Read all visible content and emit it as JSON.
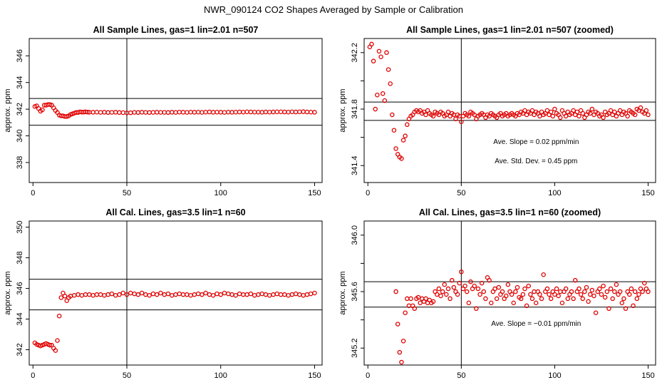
{
  "figure": {
    "title": "NWR_090124  CO2 Shapes Averaged by Sample or Calibration"
  },
  "chart_data": [
    {
      "type": "scatter",
      "title": "All Sample Lines, gas=1 lin=2.01 n=507",
      "xlabel": "",
      "ylabel": "approx. ppm",
      "xlim": [
        -2,
        154
      ],
      "ylim": [
        336.5,
        347.3
      ],
      "xticks": [
        0,
        50,
        100,
        150
      ],
      "yticks": [
        338,
        340,
        342,
        344,
        346
      ],
      "hlines": [
        340.8,
        342.8
      ],
      "vlines": [
        50
      ],
      "marker_color": "#e00000",
      "series": [
        {
          "x": [
            1,
            2,
            3,
            4,
            5,
            6,
            7,
            8,
            9,
            10,
            11,
            12,
            13,
            14,
            15,
            16,
            17,
            18,
            19,
            20,
            21,
            22,
            23,
            24,
            25,
            26,
            27,
            28,
            29,
            30,
            32,
            34,
            36,
            38,
            40,
            42,
            44,
            46,
            48,
            50,
            52,
            54,
            56,
            58,
            60,
            62,
            64,
            66,
            68,
            70,
            72,
            74,
            76,
            78,
            80,
            82,
            84,
            86,
            88,
            90,
            92,
            94,
            96,
            98,
            100,
            102,
            104,
            106,
            108,
            110,
            112,
            114,
            116,
            118,
            120,
            122,
            124,
            126,
            128,
            130,
            132,
            134,
            136,
            138,
            140,
            142,
            144,
            146,
            148,
            150
          ],
          "y": [
            342.2,
            342.25,
            342.05,
            341.85,
            341.95,
            342.3,
            342.3,
            342.35,
            342.35,
            342.3,
            342.1,
            341.9,
            341.75,
            341.55,
            341.5,
            341.5,
            341.45,
            341.45,
            341.5,
            341.6,
            341.65,
            341.7,
            341.75,
            341.75,
            341.8,
            341.78,
            341.78,
            341.8,
            341.78,
            341.77,
            341.77,
            341.78,
            341.76,
            341.77,
            341.75,
            341.76,
            341.77,
            341.75,
            341.74,
            341.72,
            341.73,
            341.76,
            341.75,
            341.77,
            341.76,
            341.75,
            341.76,
            341.77,
            341.76,
            341.76,
            341.75,
            341.77,
            341.76,
            341.78,
            341.77,
            341.76,
            341.78,
            341.77,
            341.78,
            341.76,
            341.78,
            341.79,
            341.77,
            341.78,
            341.77,
            341.76,
            341.78,
            341.77,
            341.78,
            341.79,
            341.78,
            341.8,
            341.79,
            341.78,
            341.78,
            341.77,
            341.79,
            341.78,
            341.79,
            341.8,
            341.8,
            341.79,
            341.78,
            341.8,
            341.79,
            341.8,
            341.81,
            341.79,
            341.78,
            341.77
          ]
        }
      ]
    },
    {
      "type": "scatter",
      "title": "All Sample Lines, gas=1 lin=2.01 n=507 (zoomed)",
      "xlabel": "",
      "ylabel": "approx. ppm",
      "xlim": [
        -2,
        154
      ],
      "ylim": [
        341.28,
        342.3
      ],
      "xticks": [
        0,
        50,
        100,
        150
      ],
      "yticks": [
        341.4,
        341.6,
        341.8,
        342.0,
        342.2
      ],
      "ytick_labels": [
        "341.4",
        "",
        "341.8",
        "",
        "342.2"
      ],
      "hlines": [
        341.72,
        341.85
      ],
      "vlines": [
        50
      ],
      "marker_color": "#e00000",
      "annotations": [
        "Ave. Slope =  0.02  ppm/min",
        "Ave. Std. Dev. =  0.45  ppm"
      ],
      "series": [
        {
          "x": [
            1,
            2,
            3,
            4,
            5,
            6,
            7,
            8,
            9,
            10,
            11,
            12,
            13,
            14,
            15,
            16,
            17,
            18,
            19,
            20,
            21,
            22,
            23,
            24,
            25,
            26,
            27,
            28,
            29,
            30,
            31,
            32,
            33,
            34,
            35,
            36,
            37,
            38,
            39,
            40,
            41,
            42,
            43,
            44,
            45,
            46,
            47,
            48,
            49,
            50,
            51,
            52,
            53,
            54,
            55,
            56,
            57,
            58,
            59,
            60,
            61,
            62,
            63,
            64,
            65,
            66,
            67,
            68,
            69,
            70,
            71,
            72,
            73,
            74,
            75,
            76,
            77,
            78,
            79,
            80,
            81,
            82,
            83,
            84,
            85,
            86,
            87,
            88,
            89,
            90,
            91,
            92,
            93,
            94,
            95,
            96,
            97,
            98,
            99,
            100,
            101,
            102,
            103,
            104,
            105,
            106,
            107,
            108,
            109,
            110,
            111,
            112,
            113,
            114,
            115,
            116,
            117,
            118,
            119,
            120,
            121,
            122,
            123,
            124,
            125,
            126,
            127,
            128,
            129,
            130,
            131,
            132,
            133,
            134,
            135,
            136,
            137,
            138,
            139,
            140,
            141,
            142,
            143,
            144,
            145,
            146,
            147,
            148,
            149,
            150
          ],
          "y": [
            342.24,
            342.26,
            342.14,
            341.8,
            341.9,
            342.21,
            342.17,
            341.91,
            341.86,
            342.2,
            342.08,
            341.98,
            341.76,
            341.65,
            341.52,
            341.48,
            341.46,
            341.45,
            341.58,
            341.61,
            341.69,
            341.73,
            341.75,
            341.76,
            341.78,
            341.79,
            341.78,
            341.79,
            341.77,
            341.78,
            341.76,
            341.79,
            341.77,
            341.76,
            341.75,
            341.78,
            341.77,
            341.76,
            341.78,
            341.77,
            341.75,
            341.76,
            341.78,
            341.75,
            341.77,
            341.76,
            341.73,
            341.76,
            341.75,
            341.71,
            341.75,
            341.77,
            341.76,
            341.75,
            341.78,
            341.77,
            341.76,
            341.73,
            341.75,
            341.76,
            341.77,
            341.76,
            341.74,
            341.76,
            341.75,
            341.77,
            341.76,
            341.75,
            341.74,
            341.76,
            341.77,
            341.75,
            341.76,
            341.77,
            341.75,
            341.76,
            341.77,
            341.76,
            341.75,
            341.77,
            341.76,
            341.78,
            341.77,
            341.79,
            341.76,
            341.78,
            341.77,
            341.79,
            341.76,
            341.78,
            341.77,
            341.75,
            341.78,
            341.76,
            341.77,
            341.79,
            341.76,
            341.78,
            341.75,
            341.8,
            341.77,
            341.76,
            341.74,
            341.79,
            341.77,
            341.75,
            341.78,
            341.76,
            341.77,
            341.79,
            341.76,
            341.78,
            341.75,
            341.79,
            341.77,
            341.74,
            341.76,
            341.78,
            341.77,
            341.8,
            341.76,
            341.78,
            341.77,
            341.75,
            341.76,
            341.74,
            341.78,
            341.76,
            341.77,
            341.79,
            341.76,
            341.78,
            341.75,
            341.77,
            341.79,
            341.76,
            341.78,
            341.77,
            341.75,
            341.79,
            341.78,
            341.77,
            341.76,
            341.8,
            341.79,
            341.81,
            341.78,
            341.77,
            341.79,
            341.76
          ]
        }
      ]
    },
    {
      "type": "scatter",
      "title": "All Cal. Lines, gas=3.5 lin=1 n=60",
      "xlabel": "",
      "ylabel": "approx. ppm",
      "xlim": [
        -2,
        154
      ],
      "ylim": [
        341.0,
        350.4
      ],
      "xticks": [
        0,
        50,
        100,
        150
      ],
      "yticks": [
        342,
        344,
        346,
        348,
        350
      ],
      "hlines": [
        344.6,
        346.6
      ],
      "vlines": [
        50
      ],
      "marker_color": "#e00000",
      "series": [
        {
          "x": [
            1,
            2,
            3,
            4,
            5,
            6,
            7,
            8,
            9,
            10,
            11,
            12,
            13,
            14,
            15,
            16,
            17,
            18,
            19,
            20,
            22,
            24,
            26,
            28,
            30,
            32,
            34,
            36,
            38,
            40,
            42,
            44,
            46,
            48,
            50,
            52,
            54,
            56,
            58,
            60,
            62,
            64,
            66,
            68,
            70,
            72,
            74,
            76,
            78,
            80,
            82,
            84,
            86,
            88,
            90,
            92,
            94,
            96,
            98,
            100,
            102,
            104,
            106,
            108,
            110,
            112,
            114,
            116,
            118,
            120,
            122,
            124,
            126,
            128,
            130,
            132,
            134,
            136,
            138,
            140,
            142,
            144,
            146,
            148,
            150
          ],
          "y": [
            342.45,
            342.35,
            342.3,
            342.25,
            342.3,
            342.35,
            342.4,
            342.35,
            342.3,
            342.3,
            342.1,
            341.95,
            342.6,
            344.2,
            345.4,
            345.7,
            345.5,
            345.2,
            345.4,
            345.5,
            345.55,
            345.6,
            345.55,
            345.6,
            345.6,
            345.55,
            345.6,
            345.6,
            345.55,
            345.6,
            345.65,
            345.55,
            345.6,
            345.7,
            345.6,
            345.7,
            345.65,
            345.6,
            345.7,
            345.6,
            345.55,
            345.65,
            345.6,
            345.7,
            345.6,
            345.65,
            345.55,
            345.6,
            345.65,
            345.6,
            345.6,
            345.55,
            345.6,
            345.65,
            345.6,
            345.7,
            345.6,
            345.55,
            345.65,
            345.6,
            345.7,
            345.65,
            345.6,
            345.55,
            345.65,
            345.6,
            345.6,
            345.65,
            345.55,
            345.6,
            345.65,
            345.6,
            345.55,
            345.6,
            345.65,
            345.6,
            345.6,
            345.55,
            345.6,
            345.65,
            345.6,
            345.55,
            345.6,
            345.65,
            345.7
          ]
        }
      ]
    },
    {
      "type": "scatter",
      "title": "All Cal. Lines, gas=3.5 lin=1 n=60 (zoomed)",
      "xlabel": "",
      "ylabel": "approx. ppm",
      "xlim": [
        -2,
        154
      ],
      "ylim": [
        345.08,
        346.1
      ],
      "xticks": [
        0,
        50,
        100,
        150
      ],
      "yticks": [
        345.2,
        345.4,
        345.6,
        345.8,
        346.0
      ],
      "ytick_labels": [
        "345.2",
        "",
        "345.6",
        "",
        "346.0"
      ],
      "hlines": [
        345.49,
        345.67
      ],
      "vlines": [
        50
      ],
      "marker_color": "#e00000",
      "annotations": [
        "Ave. Slope =  −0.01  ppm/min"
      ],
      "series": [
        {
          "x": [
            15,
            16,
            17,
            18,
            19,
            20,
            21,
            22,
            23,
            24,
            25,
            26,
            27,
            28,
            29,
            30,
            31,
            32,
            33,
            34,
            35,
            36,
            37,
            38,
            39,
            40,
            41,
            42,
            43,
            44,
            45,
            46,
            47,
            48,
            49,
            50,
            51,
            52,
            53,
            54,
            55,
            56,
            57,
            58,
            59,
            60,
            61,
            62,
            63,
            64,
            65,
            66,
            67,
            68,
            69,
            70,
            71,
            72,
            73,
            74,
            75,
            76,
            77,
            78,
            79,
            80,
            81,
            82,
            83,
            84,
            85,
            86,
            87,
            88,
            89,
            90,
            91,
            92,
            93,
            94,
            95,
            96,
            97,
            98,
            99,
            100,
            101,
            102,
            103,
            104,
            105,
            106,
            107,
            108,
            109,
            110,
            111,
            112,
            113,
            114,
            115,
            116,
            117,
            118,
            119,
            120,
            121,
            122,
            123,
            124,
            125,
            126,
            127,
            128,
            129,
            130,
            131,
            132,
            133,
            134,
            135,
            136,
            137,
            138,
            139,
            140,
            141,
            142,
            143,
            144,
            145,
            146,
            147,
            148,
            149,
            150
          ],
          "y": [
            345.6,
            345.37,
            345.17,
            345.1,
            345.25,
            345.45,
            345.55,
            345.5,
            345.55,
            345.5,
            345.48,
            345.55,
            345.56,
            345.52,
            345.55,
            345.53,
            345.55,
            345.52,
            345.54,
            345.52,
            345.53,
            345.6,
            345.58,
            345.62,
            345.57,
            345.6,
            345.65,
            345.58,
            345.62,
            345.55,
            345.68,
            345.63,
            345.6,
            345.58,
            345.66,
            345.74,
            345.62,
            345.64,
            345.6,
            345.52,
            345.67,
            345.62,
            345.64,
            345.48,
            345.62,
            345.58,
            345.66,
            345.6,
            345.55,
            345.7,
            345.68,
            345.52,
            345.6,
            345.62,
            345.55,
            345.63,
            345.58,
            345.6,
            345.55,
            345.57,
            345.65,
            345.6,
            345.58,
            345.52,
            345.6,
            345.63,
            345.56,
            345.55,
            345.58,
            345.62,
            345.5,
            345.64,
            345.58,
            345.55,
            345.6,
            345.52,
            345.6,
            345.58,
            345.55,
            345.72,
            345.6,
            345.62,
            345.58,
            345.55,
            345.6,
            345.58,
            345.62,
            345.57,
            345.6,
            345.52,
            345.6,
            345.62,
            345.55,
            345.58,
            345.6,
            345.55,
            345.68,
            345.6,
            345.62,
            345.58,
            345.55,
            345.6,
            345.63,
            345.53,
            345.58,
            345.61,
            345.57,
            345.45,
            345.6,
            345.62,
            345.58,
            345.64,
            345.56,
            345.6,
            345.48,
            345.62,
            345.55,
            345.6,
            345.65,
            345.58,
            345.6,
            345.52,
            345.55,
            345.48,
            345.6,
            345.58,
            345.62,
            345.5,
            345.6,
            345.55,
            345.58,
            345.62,
            345.6,
            345.66,
            345.62,
            345.6
          ]
        }
      ]
    }
  ]
}
